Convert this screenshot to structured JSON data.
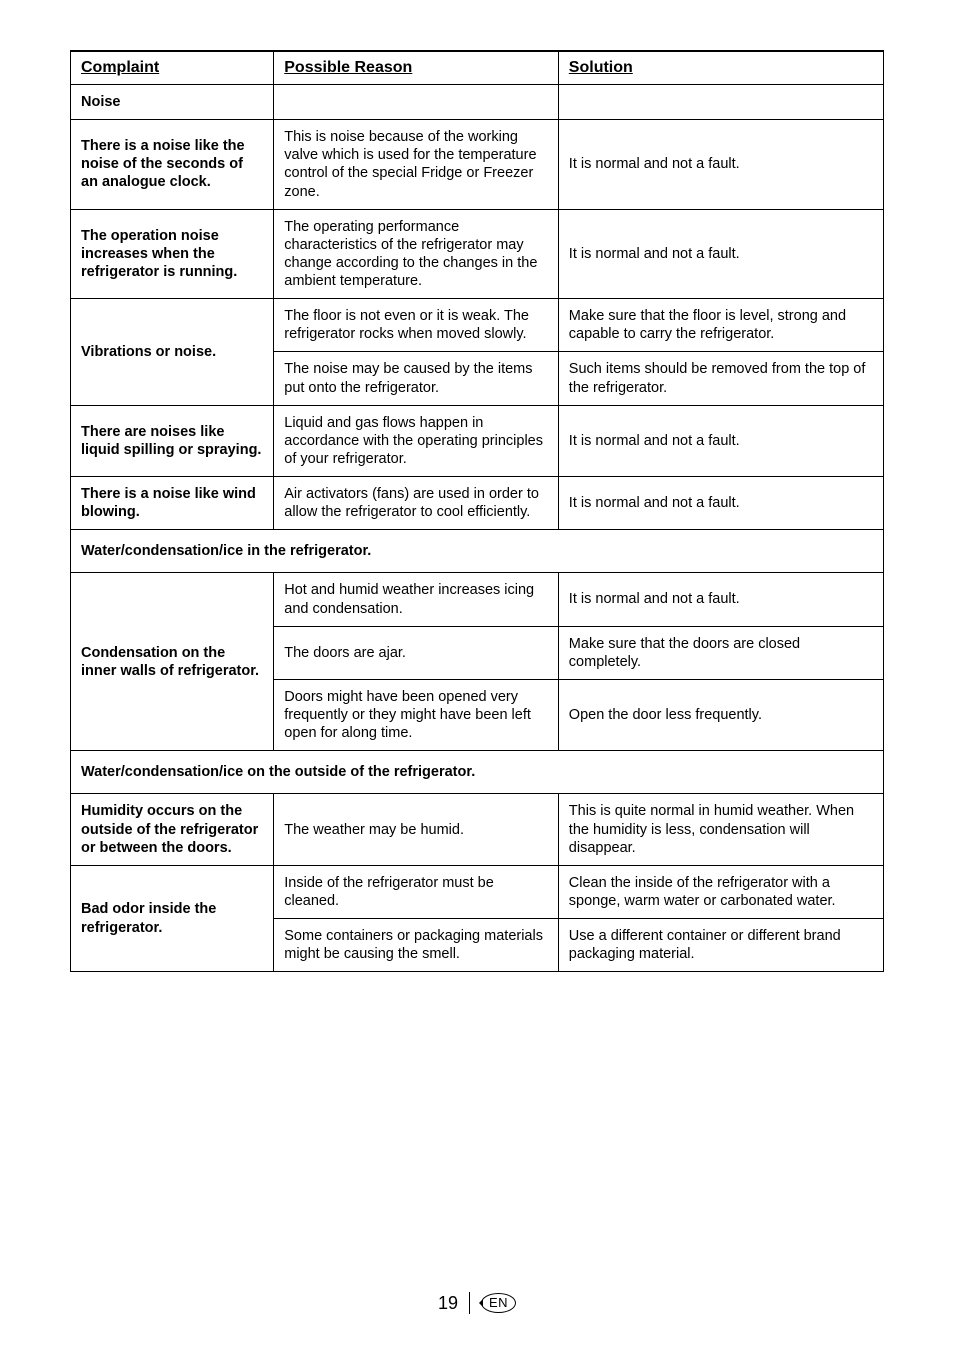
{
  "header": {
    "col1": "Complaint",
    "col2": "Possible Reason",
    "col3": "Solution"
  },
  "rows": [
    {
      "type": "row",
      "complaint": "Noise",
      "complaintBold": true,
      "reason": "",
      "solution": "",
      "complaintRowspan": 1
    },
    {
      "type": "row",
      "complaint": "There is a noise like the noise of the seconds of an analogue clock.",
      "complaintBold": true,
      "reason": "This is noise because of the working valve which is used for the temperature control of the special Fridge or Freezer zone.",
      "solution": "It is normal and not a fault."
    },
    {
      "type": "row",
      "complaint": "The operation noise increases when the refrigerator is running.",
      "complaintBold": true,
      "reason": "The operating performance characteristics of the refrigerator may change according to the changes in the ambient temperature.",
      "solution": "It is normal and not a fault."
    },
    {
      "type": "row",
      "complaint": "Vibrations or noise.",
      "complaintBold": true,
      "complaintRowspan": 2,
      "reason": "The floor is not even or it is weak. The refrigerator rocks when moved slowly.",
      "solution": "Make sure that the floor is level, strong and capable to carry the refrigerator."
    },
    {
      "type": "sub",
      "reason": "The noise may be caused by the items put onto the refrigerator.",
      "solution": "Such items should be removed from the top of the refrigerator."
    },
    {
      "type": "row",
      "complaint": "There are noises like liquid spilling or spraying.",
      "complaintBold": true,
      "reason": "Liquid and gas flows happen in accordance with the operating principles of your refrigerator.",
      "solution": "It is normal and not a fault."
    },
    {
      "type": "row",
      "complaint": "There is a noise like wind blowing.",
      "complaintBold": true,
      "reason": "Air activators (fans) are used in order to allow the refrigerator to cool efficiently.",
      "solution": "It is normal and not a fault."
    },
    {
      "type": "section",
      "text": "Water/condensation/ice in the refrigerator."
    },
    {
      "type": "row",
      "complaint": "Condensation on the inner walls of refrigerator.",
      "complaintBold": true,
      "complaintRowspan": 3,
      "reason": "Hot and humid weather increases icing and condensation.",
      "solution": "It is normal and not a fault."
    },
    {
      "type": "sub",
      "reason": "The doors are ajar.",
      "solution": "Make sure that the doors are closed completely."
    },
    {
      "type": "sub",
      "reason": "Doors might have been opened very frequently or they might have been left open for along time.",
      "solution": "Open the door less frequently."
    },
    {
      "type": "section",
      "text": "Water/condensation/ice on the outside of the refrigerator."
    },
    {
      "type": "row",
      "complaint": "Humidity occurs on the outside of the refrigerator or between the doors.",
      "complaintBold": true,
      "reason": "The weather may be humid.",
      "solution": "This is quite normal in humid weather. When the humidity is less, condensation will disappear."
    },
    {
      "type": "row",
      "complaint": "Bad odor inside the refrigerator.",
      "complaintBold": true,
      "complaintRowspan": 2,
      "reason": "Inside of the refrigerator must be cleaned.",
      "solution": "Clean the inside of the refrigerator with a sponge, warm water or carbonated water."
    },
    {
      "type": "sub",
      "reason": "Some containers or packaging materials might be causing the smell.",
      "solution": "Use a different container or different brand packaging material."
    }
  ],
  "footer": {
    "pageNumber": "19",
    "lang": "EN"
  }
}
